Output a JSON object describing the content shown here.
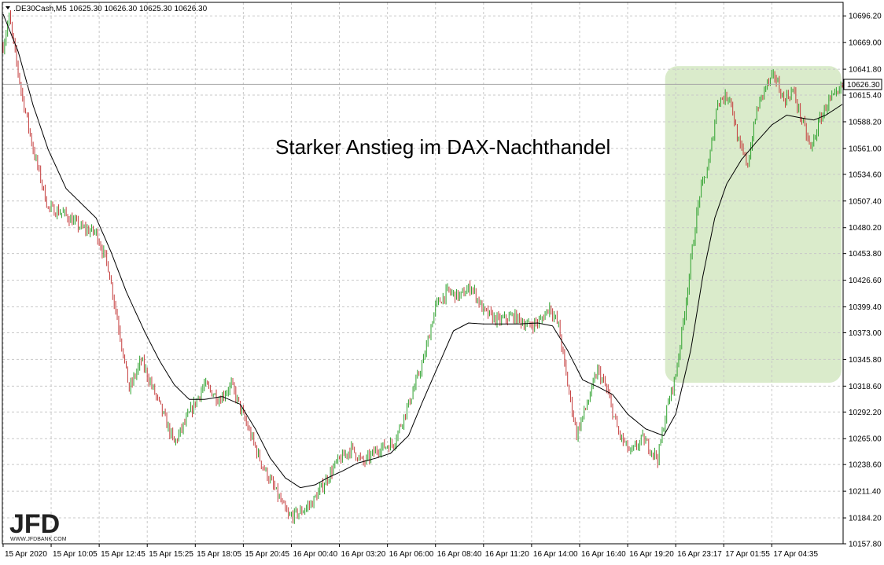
{
  "header": {
    "symbol": ".DE30Cash,M5",
    "ohlc": "10625.30 10626.30 10625.30 10626.30"
  },
  "annotation": "Starker Anstieg im DAX-Nachthandel",
  "logo": {
    "text": "JFD",
    "sub": "WWW.JFDBANK.COM"
  },
  "current_price_label": "10626.30",
  "colors": {
    "bull": "#2ca02c",
    "bear": "#c43c3c",
    "ma": "#000000",
    "highlight": "#d4e8c2",
    "grid": "#c8c8c8"
  },
  "chart_data": {
    "type": "candlestick",
    "title": "",
    "ylim": [
      10157.8,
      10710.0
    ],
    "current_price": 10626.3,
    "y_ticks": [
      10696.2,
      10669.0,
      10641.8,
      10615.4,
      10588.2,
      10561.0,
      10534.6,
      10507.4,
      10480.2,
      10453.8,
      10426.6,
      10399.4,
      10373.0,
      10345.8,
      10318.6,
      10292.2,
      10265.0,
      10238.6,
      10211.4,
      10184.2,
      10157.8
    ],
    "y_tick_labels": [
      "10696.20",
      "10669.00",
      "10641.80",
      "10615.40",
      "10588.20",
      "10561.00",
      "10534.60",
      "10507.40",
      "10480.20",
      "10453.80",
      "10426.60",
      "10399.40",
      "10373.00",
      "10345.80",
      "10318.60",
      "10292.20",
      "10265.00",
      "10238.60",
      "10211.40",
      "10184.20",
      "10157.80"
    ],
    "x_tick_labels": [
      "15 Apr 2020",
      "15 Apr 10:05",
      "15 Apr 12:45",
      "15 Apr 15:25",
      "15 Apr 18:05",
      "15 Apr 20:45",
      "16 Apr 00:40",
      "16 Apr 03:20",
      "16 Apr 06:00",
      "16 Apr 08:40",
      "16 Apr 11:20",
      "16 Apr 14:00",
      "16 Apr 16:40",
      "16 Apr 19:20",
      "16 Apr 23:17",
      "17 Apr 01:55",
      "17 Apr 04:35"
    ],
    "num_bars": 560,
    "x_tick_every": 32,
    "highlight_bars": [
      442,
      560
    ],
    "highlight_range": [
      10322,
      10645
    ],
    "price_path": [
      [
        0,
        10665
      ],
      [
        4,
        10695
      ],
      [
        12,
        10620
      ],
      [
        20,
        10560
      ],
      [
        30,
        10500
      ],
      [
        40,
        10495
      ],
      [
        52,
        10480
      ],
      [
        62,
        10475
      ],
      [
        70,
        10440
      ],
      [
        78,
        10370
      ],
      [
        84,
        10315
      ],
      [
        92,
        10345
      ],
      [
        104,
        10300
      ],
      [
        114,
        10260
      ],
      [
        124,
        10290
      ],
      [
        134,
        10320
      ],
      [
        144,
        10305
      ],
      [
        152,
        10320
      ],
      [
        162,
        10280
      ],
      [
        172,
        10240
      ],
      [
        182,
        10210
      ],
      [
        190,
        10185
      ],
      [
        198,
        10190
      ],
      [
        206,
        10200
      ],
      [
        214,
        10220
      ],
      [
        222,
        10240
      ],
      [
        232,
        10255
      ],
      [
        240,
        10240
      ],
      [
        250,
        10255
      ],
      [
        260,
        10260
      ],
      [
        270,
        10300
      ],
      [
        280,
        10345
      ],
      [
        288,
        10400
      ],
      [
        296,
        10415
      ],
      [
        304,
        10410
      ],
      [
        312,
        10420
      ],
      [
        320,
        10395
      ],
      [
        330,
        10385
      ],
      [
        340,
        10390
      ],
      [
        350,
        10380
      ],
      [
        358,
        10385
      ],
      [
        364,
        10400
      ],
      [
        370,
        10380
      ],
      [
        376,
        10320
      ],
      [
        382,
        10270
      ],
      [
        390,
        10305
      ],
      [
        396,
        10335
      ],
      [
        402,
        10315
      ],
      [
        410,
        10270
      ],
      [
        418,
        10250
      ],
      [
        426,
        10265
      ],
      [
        436,
        10245
      ],
      [
        442,
        10295
      ],
      [
        448,
        10330
      ],
      [
        454,
        10395
      ],
      [
        460,
        10470
      ],
      [
        464,
        10515
      ],
      [
        470,
        10545
      ],
      [
        476,
        10610
      ],
      [
        484,
        10615
      ],
      [
        490,
        10565
      ],
      [
        496,
        10545
      ],
      [
        502,
        10600
      ],
      [
        508,
        10625
      ],
      [
        514,
        10635
      ],
      [
        520,
        10610
      ],
      [
        526,
        10620
      ],
      [
        532,
        10590
      ],
      [
        538,
        10560
      ],
      [
        544,
        10590
      ],
      [
        550,
        10610
      ],
      [
        556,
        10615
      ],
      [
        559,
        10626
      ]
    ],
    "moving_average": [
      [
        0,
        10698
      ],
      [
        10,
        10660
      ],
      [
        20,
        10605
      ],
      [
        30,
        10560
      ],
      [
        42,
        10520
      ],
      [
        52,
        10505
      ],
      [
        62,
        10490
      ],
      [
        72,
        10455
      ],
      [
        82,
        10415
      ],
      [
        94,
        10375
      ],
      [
        104,
        10345
      ],
      [
        114,
        10320
      ],
      [
        124,
        10305
      ],
      [
        134,
        10305
      ],
      [
        146,
        10308
      ],
      [
        158,
        10300
      ],
      [
        168,
        10275
      ],
      [
        178,
        10245
      ],
      [
        188,
        10225
      ],
      [
        198,
        10215
      ],
      [
        208,
        10218
      ],
      [
        216,
        10225
      ],
      [
        226,
        10232
      ],
      [
        236,
        10240
      ],
      [
        248,
        10245
      ],
      [
        258,
        10250
      ],
      [
        270,
        10268
      ],
      [
        280,
        10305
      ],
      [
        290,
        10340
      ],
      [
        300,
        10375
      ],
      [
        310,
        10383
      ],
      [
        320,
        10382
      ],
      [
        332,
        10382
      ],
      [
        344,
        10382
      ],
      [
        356,
        10383
      ],
      [
        366,
        10380
      ],
      [
        376,
        10355
      ],
      [
        386,
        10325
      ],
      [
        396,
        10318
      ],
      [
        406,
        10310
      ],
      [
        416,
        10290
      ],
      [
        428,
        10275
      ],
      [
        440,
        10268
      ],
      [
        448,
        10290
      ],
      [
        458,
        10355
      ],
      [
        466,
        10430
      ],
      [
        474,
        10490
      ],
      [
        482,
        10525
      ],
      [
        492,
        10550
      ],
      [
        502,
        10568
      ],
      [
        512,
        10585
      ],
      [
        522,
        10595
      ],
      [
        532,
        10592
      ],
      [
        540,
        10590
      ],
      [
        548,
        10595
      ],
      [
        556,
        10603
      ],
      [
        559,
        10606
      ]
    ]
  }
}
